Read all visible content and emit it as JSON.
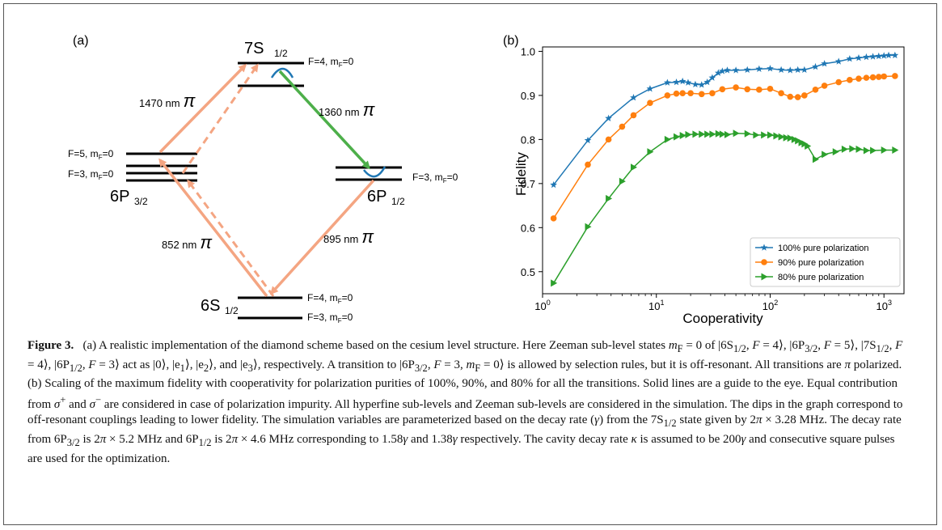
{
  "panel_a": {
    "label": "(a)",
    "levels": {
      "s7": {
        "name": "7S",
        "sub": "1/2",
        "upper": "F=4, m",
        "upper_sub": "F",
        "upper_end": "=0"
      },
      "p32": {
        "name": "6P",
        "sub": "3/2",
        "f5": "F=5, m",
        "f3": "F=3, m",
        "msub": "F",
        "mend": "=0"
      },
      "p12": {
        "name": "6P",
        "sub": "1/2",
        "f3": "F=3, m",
        "msub": "F",
        "mend": "=0"
      },
      "s12": {
        "name": "6S",
        "sub": "1/2",
        "f4": "F=4, m",
        "f3": "F=3, m",
        "msub": "F",
        "mend": "=0"
      }
    },
    "transitions": {
      "t1470": {
        "wavelength": "1470 nm",
        "pol": "π"
      },
      "t1360": {
        "wavelength": "1360 nm",
        "pol": "π"
      },
      "t852": {
        "wavelength": "852 nm",
        "pol": "π"
      },
      "t895": {
        "wavelength": "895 nm",
        "pol": "π"
      }
    },
    "colors": {
      "salmon": "#f4a582",
      "green": "#4daf4a",
      "blue": "#1f77b4"
    }
  },
  "panel_b": {
    "label": "(b)",
    "chart_data": {
      "type": "line",
      "xlabel": "Cooperativity",
      "ylabel": "Fidelity",
      "xscale": "log",
      "xlim": [
        1,
        1500
      ],
      "ylim": [
        0.45,
        1.01
      ],
      "xticks": [
        {
          "value": 1,
          "base": "10",
          "exp": "0"
        },
        {
          "value": 10,
          "base": "10",
          "exp": "1"
        },
        {
          "value": 100,
          "base": "10",
          "exp": "2"
        },
        {
          "value": 1000,
          "base": "10",
          "exp": "3"
        }
      ],
      "yticks": [
        "0.5",
        "0.6",
        "0.7",
        "0.8",
        "0.9",
        "1.0"
      ],
      "legend_position": "bottom-right",
      "series": [
        {
          "name": "100% pure polarization",
          "color": "#1f77b4",
          "marker": "star",
          "points": [
            [
              1.25,
              0.697
            ],
            [
              2.5,
              0.798
            ],
            [
              3.8,
              0.848
            ],
            [
              6.3,
              0.895
            ],
            [
              8.8,
              0.915
            ],
            [
              12.5,
              0.929
            ],
            [
              15,
              0.93
            ],
            [
              17,
              0.932
            ],
            [
              19,
              0.929
            ],
            [
              22,
              0.925
            ],
            [
              25,
              0.924
            ],
            [
              28,
              0.93
            ],
            [
              31,
              0.94
            ],
            [
              35,
              0.951
            ],
            [
              38,
              0.955
            ],
            [
              42,
              0.957
            ],
            [
              50,
              0.957
            ],
            [
              63,
              0.958
            ],
            [
              80,
              0.96
            ],
            [
              100,
              0.961
            ],
            [
              125,
              0.958
            ],
            [
              150,
              0.957
            ],
            [
              175,
              0.958
            ],
            [
              200,
              0.958
            ],
            [
              250,
              0.965
            ],
            [
              300,
              0.972
            ],
            [
              400,
              0.977
            ],
            [
              500,
              0.983
            ],
            [
              600,
              0.985
            ],
            [
              700,
              0.987
            ],
            [
              800,
              0.988
            ],
            [
              900,
              0.989
            ],
            [
              1000,
              0.99
            ],
            [
              1100,
              0.991
            ],
            [
              1250,
              0.991
            ]
          ]
        },
        {
          "name": "90% pure polarization",
          "color": "#ff7f0e",
          "marker": "circle",
          "points": [
            [
              1.25,
              0.621
            ],
            [
              2.5,
              0.743
            ],
            [
              3.8,
              0.8
            ],
            [
              5,
              0.829
            ],
            [
              6.3,
              0.855
            ],
            [
              8.8,
              0.883
            ],
            [
              12.5,
              0.9
            ],
            [
              15,
              0.904
            ],
            [
              17,
              0.905
            ],
            [
              20,
              0.905
            ],
            [
              25,
              0.903
            ],
            [
              31,
              0.905
            ],
            [
              38,
              0.914
            ],
            [
              50,
              0.918
            ],
            [
              63,
              0.914
            ],
            [
              80,
              0.913
            ],
            [
              100,
              0.915
            ],
            [
              125,
              0.905
            ],
            [
              150,
              0.897
            ],
            [
              175,
              0.896
            ],
            [
              200,
              0.9
            ],
            [
              250,
              0.913
            ],
            [
              300,
              0.922
            ],
            [
              400,
              0.93
            ],
            [
              500,
              0.935
            ],
            [
              600,
              0.938
            ],
            [
              700,
              0.94
            ],
            [
              800,
              0.941
            ],
            [
              900,
              0.942
            ],
            [
              1000,
              0.943
            ],
            [
              1250,
              0.944
            ]
          ]
        },
        {
          "name": "80% pure polarization",
          "color": "#2ca02c",
          "marker": "triangle",
          "points": [
            [
              1.25,
              0.474
            ],
            [
              2.5,
              0.602
            ],
            [
              3.8,
              0.666
            ],
            [
              5,
              0.705
            ],
            [
              6.3,
              0.737
            ],
            [
              8.8,
              0.772
            ],
            [
              12.5,
              0.8
            ],
            [
              15,
              0.806
            ],
            [
              17,
              0.809
            ],
            [
              19,
              0.811
            ],
            [
              22,
              0.812
            ],
            [
              25,
              0.812
            ],
            [
              28,
              0.812
            ],
            [
              31,
              0.812
            ],
            [
              35,
              0.813
            ],
            [
              38,
              0.812
            ],
            [
              42,
              0.811
            ],
            [
              50,
              0.814
            ],
            [
              63,
              0.813
            ],
            [
              75,
              0.81
            ],
            [
              88,
              0.81
            ],
            [
              100,
              0.81
            ],
            [
              113,
              0.808
            ],
            [
              125,
              0.806
            ],
            [
              138,
              0.804
            ],
            [
              150,
              0.803
            ],
            [
              163,
              0.8
            ],
            [
              175,
              0.797
            ],
            [
              188,
              0.793
            ],
            [
              200,
              0.79
            ],
            [
              213,
              0.785
            ],
            [
              250,
              0.755
            ],
            [
              300,
              0.766
            ],
            [
              375,
              0.772
            ],
            [
              450,
              0.778
            ],
            [
              525,
              0.779
            ],
            [
              600,
              0.778
            ],
            [
              700,
              0.775
            ],
            [
              800,
              0.775
            ],
            [
              1000,
              0.776
            ],
            [
              1250,
              0.776
            ]
          ]
        }
      ]
    }
  },
  "caption": {
    "label": "Figure 3.",
    "text_1": "(a) A realistic implementation of the diamond scheme based on the cesium level structure. Here Zeeman sub-level states",
    "text_2": "of",
    "text_3": "act as",
    "text_4": "and",
    "text_5": "respectively. A transition to",
    "text_6": "is allowed by selection rules, but it is off-resonant. All transitions are",
    "text_7": "polarized. (b) Scaling of the maximum fidelity with cooperativity for polarization purities of 100%, 90%, and 80% for all the transitions. Solid lines are a guide to the eye. Equal contribution from",
    "text_8": "and",
    "text_9": "are considered in case of polarization impurity. All hyperfine sub-levels and Zeeman sub-levels are considered in the simulation. The dips in the graph correspond to off-resonant couplings leading to lower fidelity. The simulation variables are parameterized based on the decay rate",
    "text_10": "from the 7S",
    "text_11": "state given by 2",
    "text_12": "3.28 MHz. The decay rate from 6P",
    "text_13": "is 2",
    "text_14": "5.2 MHz and 6P",
    "text_15": "is 2",
    "text_16": "4.6 MHz corresponding to 1.58",
    "text_17": "and 1.38",
    "text_18": "respectively. The cavity decay rate",
    "text_19": "is assumed to be 200",
    "text_20": "and consecutive square pulses are used for the optimization."
  }
}
